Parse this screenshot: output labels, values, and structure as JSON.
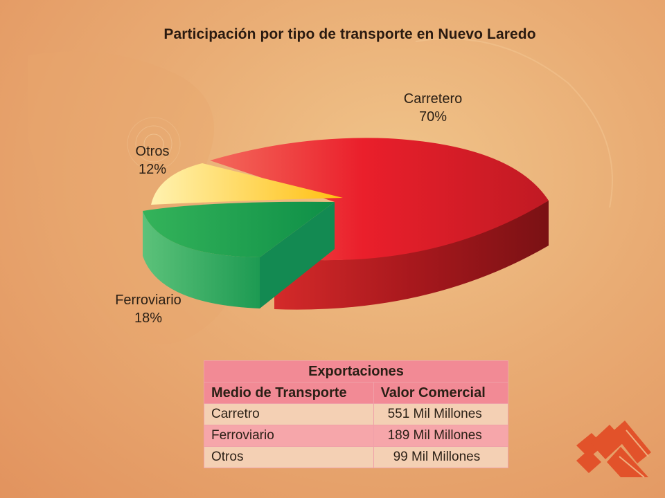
{
  "title": "Participación por tipo de transporte en Nuevo Laredo",
  "chart_data": {
    "type": "pie",
    "title": "Participación por tipo de transporte en Nuevo Laredo",
    "categories": [
      "Carretero",
      "Ferroviario",
      "Otros"
    ],
    "values": [
      70,
      18,
      12
    ],
    "labels": [
      "Carretero\n70%",
      "Ferroviario\n18%",
      "Otros\n12%"
    ],
    "colors": [
      "#e0232a",
      "#1f9f48",
      "#ffc21c"
    ]
  },
  "labels": {
    "carretero_name": "Carretero",
    "carretero_pct": "70%",
    "ferroviario_name": "Ferroviario",
    "ferroviario_pct": "18%",
    "otros_name": "Otros",
    "otros_pct": "12%"
  },
  "table": {
    "caption": "Exportaciones",
    "headers": [
      "Medio de Transporte",
      "Valor Comercial"
    ],
    "rows": [
      {
        "medio": "Carretro",
        "valor": "551 Mil Millones"
      },
      {
        "medio": "Ferroviario",
        "valor": "189 Mil Millones"
      },
      {
        "medio": "Otros",
        "valor": "99 Mil Millones"
      }
    ]
  },
  "logo_icon": "company-logo-icon"
}
